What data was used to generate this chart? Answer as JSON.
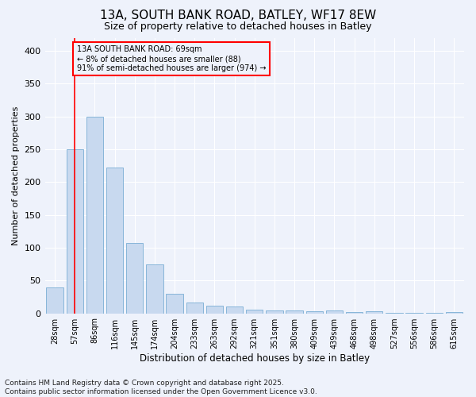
{
  "title_line1": "13A, SOUTH BANK ROAD, BATLEY, WF17 8EW",
  "title_line2": "Size of property relative to detached houses in Batley",
  "xlabel": "Distribution of detached houses by size in Batley",
  "ylabel": "Number of detached properties",
  "categories": [
    "28sqm",
    "57sqm",
    "86sqm",
    "116sqm",
    "145sqm",
    "174sqm",
    "204sqm",
    "233sqm",
    "263sqm",
    "292sqm",
    "321sqm",
    "351sqm",
    "380sqm",
    "409sqm",
    "439sqm",
    "468sqm",
    "498sqm",
    "527sqm",
    "556sqm",
    "586sqm",
    "615sqm"
  ],
  "values": [
    40,
    250,
    300,
    222,
    107,
    75,
    30,
    17,
    11,
    10,
    5,
    4,
    4,
    3,
    4,
    2,
    3,
    1,
    1,
    1,
    2
  ],
  "bar_color": "#c8d9ef",
  "bar_edge_color": "#7aadd4",
  "vline_x": 1.0,
  "vline_color": "red",
  "annotation_title": "13A SOUTH BANK ROAD: 69sqm",
  "annotation_line1": "← 8% of detached houses are smaller (88)",
  "annotation_line2": "91% of semi-detached houses are larger (974) →",
  "annotation_box_color": "red",
  "ylim": [
    0,
    420
  ],
  "yticks": [
    0,
    50,
    100,
    150,
    200,
    250,
    300,
    350,
    400
  ],
  "footer_line1": "Contains HM Land Registry data © Crown copyright and database right 2025.",
  "footer_line2": "Contains public sector information licensed under the Open Government Licence v3.0.",
  "bg_color": "#eef2fb",
  "grid_color": "#ffffff",
  "title_fontsize": 11,
  "subtitle_fontsize": 9,
  "tick_fontsize": 7,
  "footer_fontsize": 6.5,
  "ylabel_fontsize": 8,
  "xlabel_fontsize": 8.5
}
